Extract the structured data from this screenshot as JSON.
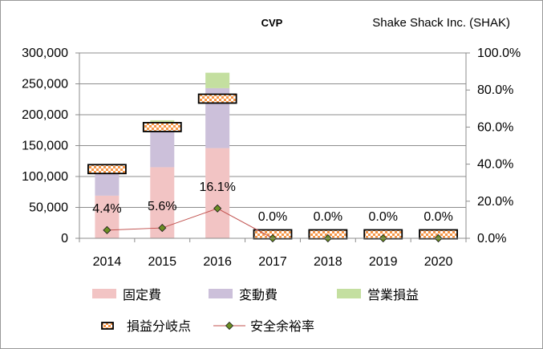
{
  "chart_data": {
    "type": "bar",
    "title": "CVP",
    "company": "Shake Shack Inc. (SHAK)",
    "categories": [
      "2014",
      "2015",
      "2016",
      "2017",
      "2018",
      "2019",
      "2020"
    ],
    "series": [
      {
        "name": "固定費",
        "kind": "stacked-bar",
        "axis": "left",
        "color": "#f2c4c4",
        "values": [
          69000,
          115000,
          146000,
          0,
          0,
          0,
          0
        ]
      },
      {
        "name": "変動費",
        "kind": "stacked-bar",
        "axis": "left",
        "color": "#ccc0da",
        "values": [
          36000,
          65000,
          97000,
          0,
          0,
          0,
          0
        ]
      },
      {
        "name": "営業損益",
        "kind": "stacked-bar",
        "axis": "left",
        "color": "#c4dfa0",
        "values": [
          5000,
          11000,
          25000,
          0,
          0,
          0,
          0
        ]
      },
      {
        "name": "損益分岐点",
        "kind": "marker",
        "axis": "left",
        "color": "#f79646",
        "values": [
          112000,
          180000,
          226000,
          0,
          0,
          0,
          0
        ]
      },
      {
        "name": "安全余裕率",
        "kind": "line",
        "axis": "right",
        "color": "#c0504d",
        "marker_color": "#6b8e23",
        "values": [
          4.4,
          5.6,
          16.1,
          0.0,
          0.0,
          0.0,
          0.0
        ]
      }
    ],
    "data_labels": [
      "4.4%",
      "5.6%",
      "16.1%",
      "0.0%",
      "0.0%",
      "0.0%",
      "0.0%"
    ],
    "y_left": {
      "ylim": [
        0,
        300000
      ],
      "ticks": [
        "0",
        "50,000",
        "100,000",
        "150,000",
        "200,000",
        "250,000",
        "300,000"
      ]
    },
    "y_right": {
      "ylim": [
        0,
        100
      ],
      "ticks": [
        "0.0%",
        "20.0%",
        "40.0%",
        "60.0%",
        "80.0%",
        "100.0%"
      ]
    },
    "grid": true,
    "legend": {
      "placement": "bottom",
      "rows": [
        [
          "固定費",
          "変動費",
          "営業損益"
        ],
        [
          "損益分岐点",
          "安全余裕率"
        ]
      ]
    }
  }
}
